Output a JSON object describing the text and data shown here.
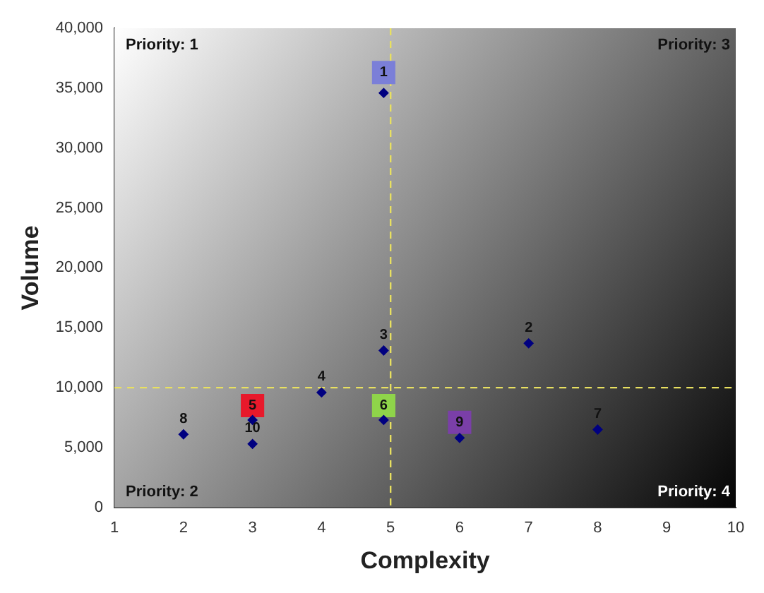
{
  "chart_data": {
    "type": "scatter",
    "xlabel": "Complexity",
    "ylabel": "Volume",
    "xlim": [
      1,
      10
    ],
    "xticks": [
      1,
      2,
      3,
      4,
      5,
      6,
      7,
      8,
      9,
      10
    ],
    "ylim": [
      0,
      40000
    ],
    "yticks": [
      {
        "value": 0,
        "label": "0"
      },
      {
        "value": 5000,
        "label": "5,000"
      },
      {
        "value": 10000,
        "label": "10,000"
      },
      {
        "value": 15000,
        "label": "15,000"
      },
      {
        "value": 20000,
        "label": "20,000"
      },
      {
        "value": 25000,
        "label": "25,000"
      },
      {
        "value": 30000,
        "label": "30,000"
      },
      {
        "value": 35000,
        "label": "35,000"
      },
      {
        "value": 40000,
        "label": "40,000"
      }
    ],
    "grid": false,
    "legend": false,
    "marker": "diamond",
    "series": [
      {
        "color": "#000080",
        "x": [
          4.9,
          7,
          4.9,
          4,
          3,
          4.9,
          8,
          2,
          6,
          3
        ],
        "values": [
          34600,
          13700,
          13100,
          9600,
          7300,
          7300,
          6500,
          6100,
          5800,
          5300
        ]
      },
      {
        "marker": "square",
        "x": [
          4.9,
          3,
          4.9,
          6
        ],
        "values": [
          36300,
          8500,
          8500,
          7100
        ],
        "colors": [
          "#7b7fd8",
          "#e8192b",
          "#8fd44a",
          "#7a3fa8"
        ]
      }
    ],
    "ref_lines": [
      {
        "axis": "x",
        "value": 5,
        "color": "#e8e060",
        "line_style": "dashed"
      },
      {
        "axis": "y",
        "value": 10000,
        "color": "#e8e060",
        "line_style": "dashed"
      }
    ],
    "annotations": [
      "Priority: 1",
      "Priority: 3",
      "Priority: 2",
      "Priority: 4",
      {
        "text": "1",
        "x": 4.9,
        "y": 36300
      },
      {
        "text": "2",
        "x": 7,
        "y": 13700
      },
      {
        "text": "3",
        "x": 4.9,
        "y": 13100
      },
      {
        "text": "4",
        "x": 4,
        "y": 9600
      },
      {
        "text": "5",
        "x": 3,
        "y": 8500
      },
      {
        "text": "6",
        "x": 4.9,
        "y": 8500
      },
      {
        "text": "7",
        "x": 8,
        "y": 6500
      },
      {
        "text": "8",
        "x": 2,
        "y": 6100
      },
      {
        "text": "9",
        "x": 6,
        "y": 7100
      },
      {
        "text": "10",
        "x": 3,
        "y": 5300
      }
    ]
  }
}
